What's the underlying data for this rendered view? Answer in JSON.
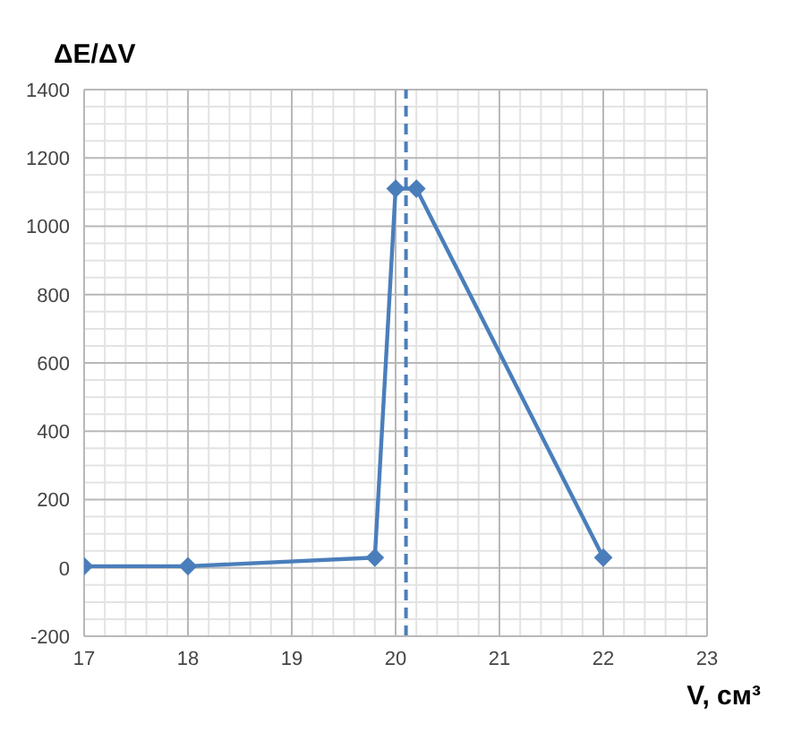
{
  "chart_data": {
    "type": "line",
    "xlabel": "V, см³",
    "ylabel": "ΔE/ΔV",
    "x": [
      17,
      18,
      19.8,
      20,
      20.2,
      22
    ],
    "series": [
      {
        "color": "#4a7ebb",
        "values": [
          5,
          5,
          30,
          1110,
          1110,
          30
        ]
      }
    ],
    "xlim": [
      17,
      23
    ],
    "xticks": [
      17,
      18,
      19,
      20,
      21,
      22,
      23
    ],
    "ylim": [
      -200,
      1400
    ],
    "yticks": [
      -200,
      0,
      200,
      400,
      600,
      800,
      1000,
      1200,
      1400
    ],
    "ref_lines": [
      {
        "axis": "x",
        "value": 20.1,
        "color": "#4a7ebb",
        "line_style": "dashed"
      }
    ],
    "grid": true,
    "marker": "diamond",
    "line_style": "solid"
  }
}
